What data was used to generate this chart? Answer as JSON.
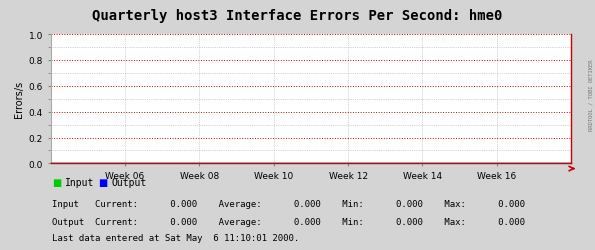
{
  "title": "Quarterly host3 Interface Errors Per Second: hme0",
  "ylabel": "Errors/s",
  "ylim": [
    0.0,
    1.0
  ],
  "yticks": [
    0.0,
    0.2,
    0.4,
    0.6,
    0.8,
    1.0
  ],
  "xtick_labels": [
    "Week 06",
    "Week 08",
    "Week 10",
    "Week 12",
    "Week 14",
    "Week 16"
  ],
  "bg_color": "#d4d4d4",
  "plot_bg_color": "#ffffff",
  "grid_color_major": "#cc0000",
  "grid_color_minor": "#aaaaaa",
  "line_color_input": "#00cc00",
  "line_color_output": "#0000ff",
  "axis_color": "#cc0000",
  "title_fontsize": 10,
  "legend_input_label": "Input",
  "legend_output_label": "Output",
  "input_stats": "Input   Current:      0.000    Average:      0.000    Min:      0.000    Max:      0.000",
  "output_stats": "Output  Current:      0.000    Average:      0.000    Min:      0.000    Max:      0.000",
  "footer_text": "Last data entered at Sat May  6 11:10:01 2000.",
  "right_label": "RRDTOOL / TOBI OETIKER"
}
